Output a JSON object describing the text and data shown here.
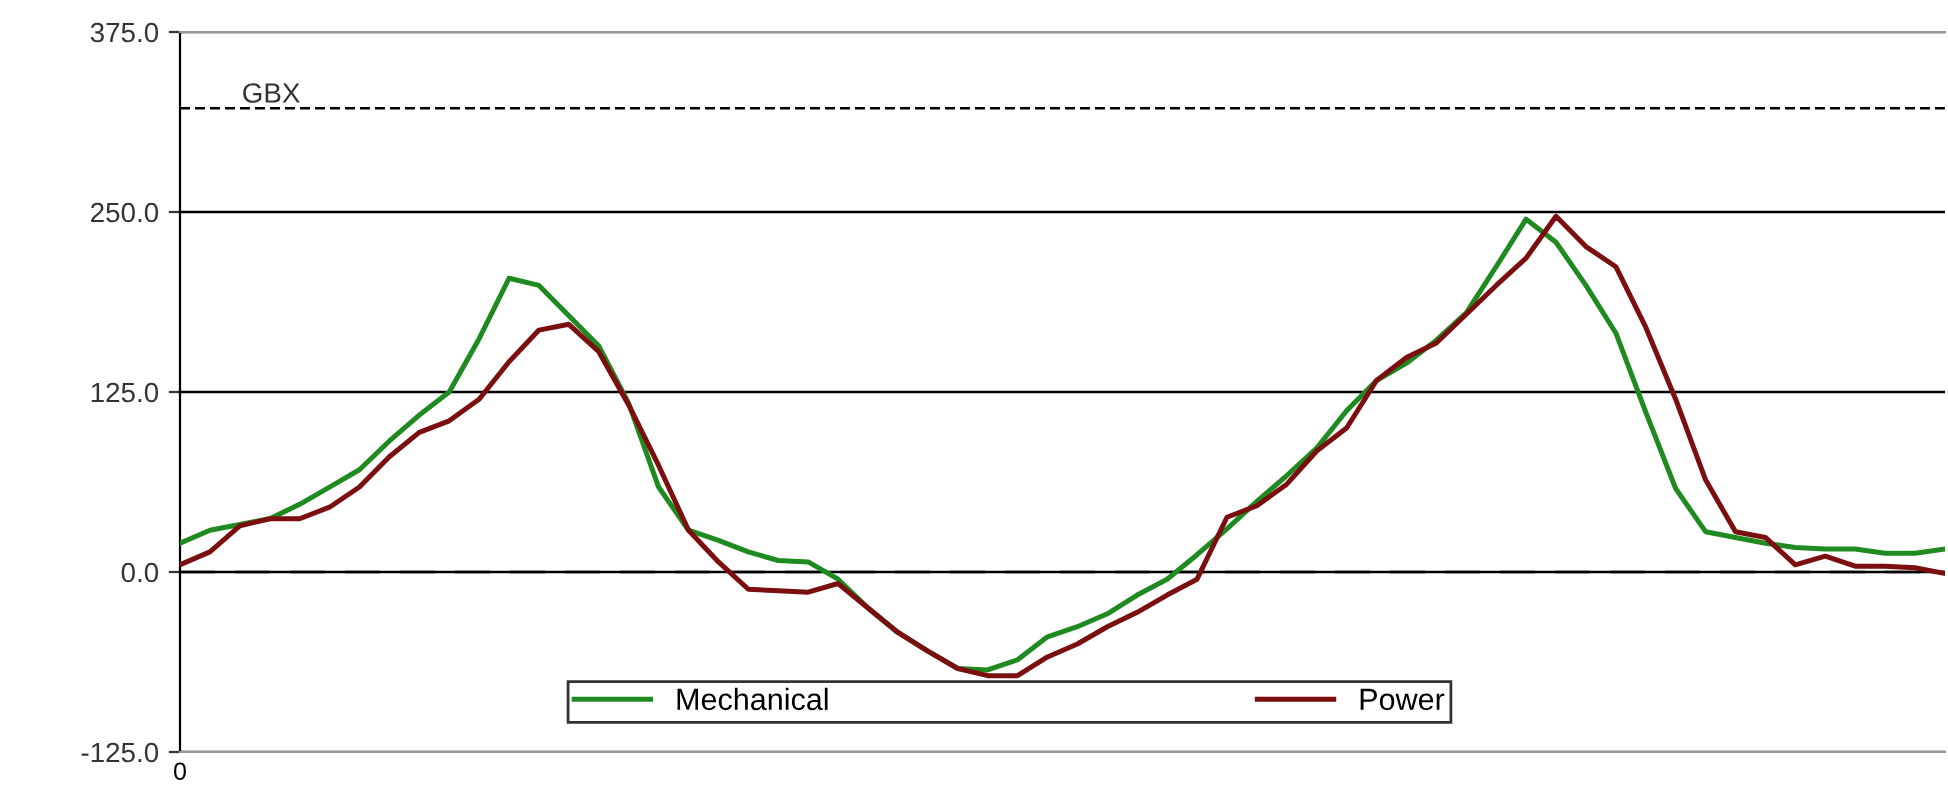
{
  "chart_data": {
    "type": "line",
    "categories": [
      "0",
      null,
      null,
      null,
      null,
      null,
      null,
      null,
      null,
      null,
      null,
      null,
      null,
      null,
      null,
      null,
      null,
      null,
      null,
      null,
      null,
      null,
      null,
      null,
      null,
      null,
      null,
      null,
      null,
      null,
      null,
      null,
      null,
      null,
      null,
      null,
      null,
      null,
      null,
      null,
      null,
      null,
      null,
      null,
      null,
      null,
      null,
      null,
      null,
      null,
      null,
      null,
      null,
      null,
      null,
      null,
      null,
      null,
      null,
      null
    ],
    "series": [
      {
        "name": "Mechanical",
        "color": "#1f8a1f",
        "values": [
          20,
          29,
          33,
          37,
          47,
          59,
          71,
          91,
          109,
          125,
          162,
          204,
          199,
          178,
          157,
          117,
          59,
          29,
          22,
          14,
          8,
          7,
          -5,
          -25,
          -42,
          -55,
          -67,
          -68,
          -61,
          -45,
          -38,
          -29,
          -16,
          -5,
          12,
          30,
          49,
          67,
          86,
          112,
          133,
          145,
          161,
          180,
          212,
          245,
          229,
          199,
          166,
          111,
          58,
          28,
          24,
          20,
          17,
          16,
          16,
          13,
          13,
          16
        ]
      },
      {
        "name": "Power",
        "color": "#7b0f0f",
        "values": [
          5,
          14,
          32,
          37,
          37,
          45,
          59,
          80,
          97,
          105,
          120,
          146,
          168,
          172,
          153,
          116,
          74,
          29,
          7,
          -12,
          -13,
          -14,
          -8,
          -25,
          -42,
          -55,
          -67,
          -72,
          -72,
          -59,
          -50,
          -38,
          -28,
          -16,
          -5,
          38,
          46,
          61,
          84,
          100,
          133,
          149,
          159,
          179,
          199,
          218,
          247,
          226,
          212,
          170,
          120,
          64,
          28,
          24,
          5,
          11,
          4,
          4,
          3,
          -1
        ]
      }
    ],
    "ylim": [
      -125,
      375
    ],
    "yticks": [
      {
        "value": -125,
        "label": "-125.0"
      },
      {
        "value": 0,
        "label": "0.0"
      },
      {
        "value": 125,
        "label": "125.0"
      },
      {
        "value": 250,
        "label": "250.0"
      },
      {
        "value": 375,
        "label": "375.0"
      }
    ],
    "grid": "y",
    "legend": "bottom",
    "marker": "none",
    "line_style": "solid",
    "ref_lines": [
      {
        "axis": "y",
        "value": 322,
        "label": "GBX",
        "color": "#000000",
        "line_style": "dotted"
      },
      {
        "axis": "y",
        "value": 0,
        "label": null,
        "color": "#000000",
        "line_style": "dashed"
      }
    ]
  }
}
